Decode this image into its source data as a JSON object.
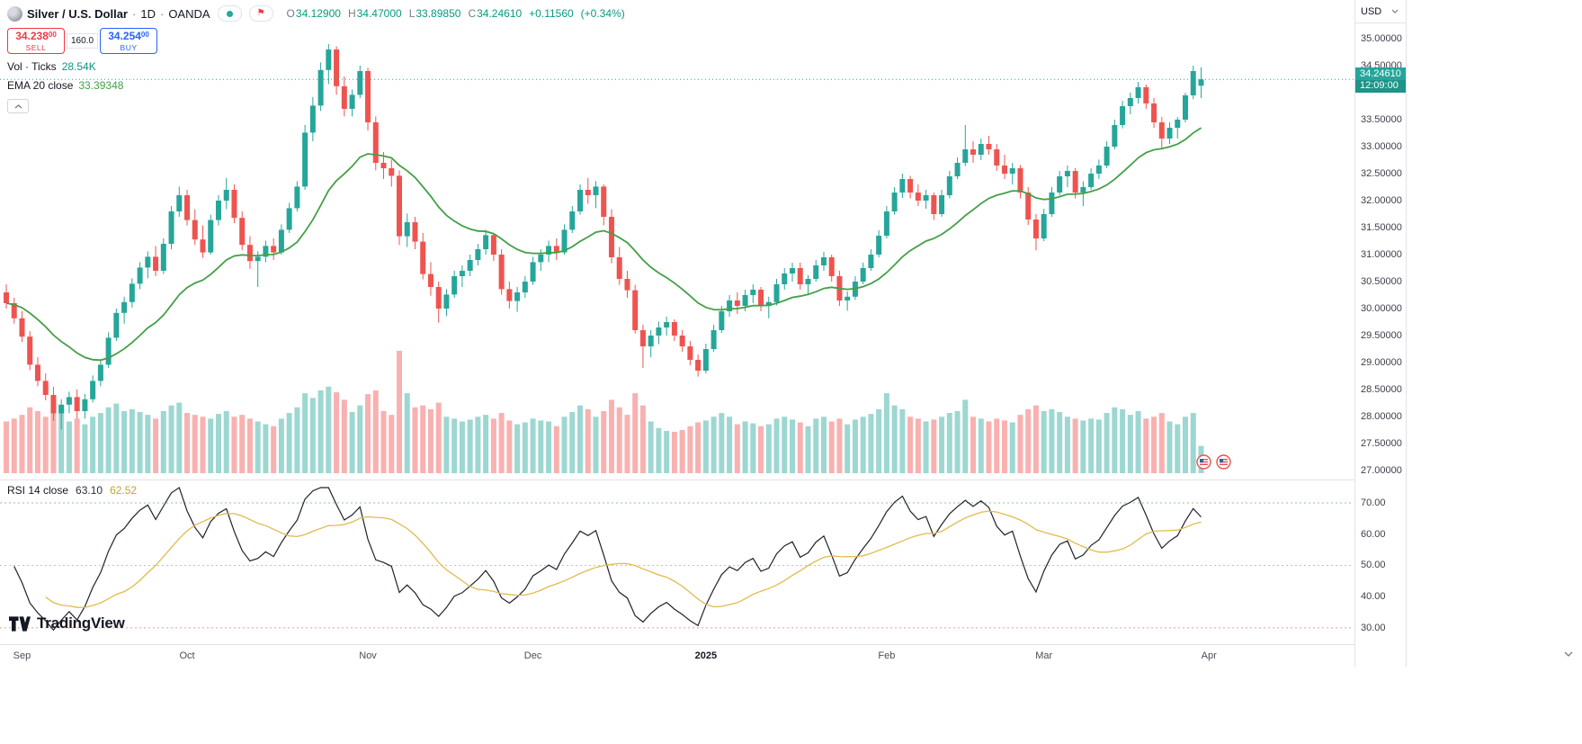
{
  "colors": {
    "up": "#26a69a",
    "down": "#ef5350",
    "vol_up": "rgba(38,166,154,0.45)",
    "vol_down": "rgba(239,83,80,0.45)",
    "ema": "#43a047",
    "rsi": "#1e222d",
    "rsi_ma": "#e0bb4d",
    "rsi_band_hi": "rgba(76,175,80,0.65)",
    "rsi_band_mid": "rgba(149,152,161,0.6)",
    "rsi_band_lo": "rgba(239,83,80,0.6)",
    "sell_red": "#f23645",
    "buy_blue": "#2962ff",
    "accent_teal": "#089981",
    "tag_bg": "#26a69a"
  },
  "header": {
    "symbol": "Silver / U.S. Dollar",
    "sep": "·",
    "timeframe": "1D",
    "exchange": "OANDA",
    "ohlc": {
      "o_label": "O",
      "o_value": "34.12900",
      "h_label": "H",
      "h_value": "34.47000",
      "l_label": "L",
      "l_value": "33.89850",
      "c_label": "C",
      "c_value": "34.24610",
      "change": "+0.11560",
      "change_pct": "(+0.34%)"
    },
    "trade": {
      "sell_price": "34.238",
      "sell_sup": "00",
      "sell_label": "SELL",
      "spread": "160.0",
      "buy_price": "34.254",
      "buy_sup": "00",
      "buy_label": "BUY"
    },
    "vol_label": "Vol · Ticks",
    "vol_value": "28.54K",
    "ema_label": "EMA 20 close",
    "ema_value": "33.39348"
  },
  "rsi_legend": {
    "label": "RSI 14 close",
    "value": "63.10",
    "ma_value": "62.52"
  },
  "price_scale": {
    "currency": "USD",
    "labels": [
      "35.00000",
      "34.50000",
      "33.50000",
      "33.00000",
      "32.50000",
      "32.00000",
      "31.50000",
      "31.00000",
      "30.50000",
      "30.00000",
      "29.50000",
      "29.00000",
      "28.50000",
      "28.00000",
      "27.50000",
      "27.00000"
    ],
    "tag": {
      "price": "34.24610",
      "countdown": "12:09:00"
    }
  },
  "rsi_scale": {
    "labels": [
      "70.00",
      "60.00",
      "50.00",
      "40.00",
      "30.00"
    ]
  },
  "footer_logo": "TradingView",
  "icons": {
    "market_status": "teal-dot-icon",
    "symbol_flag": "flag-icon",
    "currency_caret": "caret-down-icon",
    "legend_collapse": "chevron-up-icon",
    "panel_corner": "chevron-down-icon",
    "event_markers": "us-flag-circle-icon"
  },
  "chart_data": {
    "type": "candlestick",
    "title": "Silver / U.S. Dollar, 1D, OANDA",
    "current_price": 34.2461,
    "y_axis": {
      "min": 26.9,
      "max": 35.3,
      "tick_step": 0.5
    },
    "volume_axis_max_k": 130,
    "overlays": [
      {
        "name": "EMA 20",
        "period": 20,
        "last_value": 33.39348
      }
    ],
    "indicators": [
      {
        "name": "RSI",
        "period": 14,
        "last": 63.1,
        "ma_last": 62.52,
        "bands": [
          70,
          50,
          30
        ]
      }
    ],
    "x_axis": {
      "ticks": [
        {
          "label": "Sep",
          "i": 2
        },
        {
          "label": "Oct",
          "i": 23
        },
        {
          "label": "Nov",
          "i": 46
        },
        {
          "label": "Dec",
          "i": 67
        },
        {
          "label": "2025",
          "i": 89,
          "bold": true
        },
        {
          "label": "Feb",
          "i": 112
        },
        {
          "label": "Mar",
          "i": 132
        },
        {
          "label": "Apr",
          "i": 153
        }
      ]
    },
    "candles": [
      [
        30.3,
        30.45,
        30.0,
        30.1,
        55
      ],
      [
        30.1,
        30.2,
        29.72,
        29.82,
        58
      ],
      [
        29.82,
        29.95,
        29.38,
        29.48,
        62
      ],
      [
        29.48,
        29.58,
        28.86,
        28.96,
        70
      ],
      [
        28.96,
        29.1,
        28.56,
        28.66,
        66
      ],
      [
        28.66,
        28.8,
        28.3,
        28.4,
        60
      ],
      [
        28.4,
        28.55,
        27.92,
        28.06,
        72
      ],
      [
        28.06,
        28.32,
        27.76,
        28.22,
        68
      ],
      [
        28.22,
        28.46,
        28.06,
        28.36,
        55
      ],
      [
        28.36,
        28.5,
        27.96,
        28.1,
        58
      ],
      [
        28.1,
        28.42,
        27.96,
        28.32,
        52
      ],
      [
        28.32,
        28.76,
        28.26,
        28.66,
        60
      ],
      [
        28.66,
        29.06,
        28.56,
        28.96,
        64
      ],
      [
        28.96,
        29.56,
        28.9,
        29.46,
        70
      ],
      [
        29.46,
        30.0,
        29.4,
        29.92,
        74
      ],
      [
        29.92,
        30.22,
        29.72,
        30.12,
        66
      ],
      [
        30.12,
        30.56,
        30.02,
        30.46,
        68
      ],
      [
        30.46,
        30.86,
        30.36,
        30.76,
        65
      ],
      [
        30.76,
        31.06,
        30.56,
        30.96,
        62
      ],
      [
        30.96,
        31.16,
        30.6,
        30.7,
        58
      ],
      [
        30.7,
        31.3,
        30.64,
        31.2,
        66
      ],
      [
        31.2,
        31.9,
        31.1,
        31.8,
        72
      ],
      [
        31.8,
        32.26,
        31.7,
        32.1,
        75
      ],
      [
        32.1,
        32.2,
        31.54,
        31.64,
        64
      ],
      [
        31.64,
        31.84,
        31.18,
        31.28,
        62
      ],
      [
        31.28,
        31.54,
        30.94,
        31.04,
        60
      ],
      [
        31.04,
        31.74,
        31.0,
        31.64,
        58
      ],
      [
        31.64,
        32.1,
        31.54,
        32.0,
        63
      ],
      [
        32.0,
        32.42,
        31.84,
        32.2,
        66
      ],
      [
        32.2,
        32.3,
        31.58,
        31.68,
        60
      ],
      [
        31.68,
        31.8,
        31.08,
        31.18,
        62
      ],
      [
        31.18,
        31.34,
        30.74,
        30.88,
        58
      ],
      [
        30.88,
        31.06,
        30.4,
        30.96,
        55
      ],
      [
        30.96,
        31.26,
        30.86,
        31.16,
        52
      ],
      [
        31.16,
        31.3,
        30.9,
        31.04,
        50
      ],
      [
        31.04,
        31.56,
        31.0,
        31.46,
        58
      ],
      [
        31.46,
        31.96,
        31.4,
        31.86,
        64
      ],
      [
        31.86,
        32.36,
        31.8,
        32.26,
        70
      ],
      [
        32.26,
        33.4,
        32.2,
        33.26,
        85
      ],
      [
        33.26,
        33.92,
        33.1,
        33.76,
        80
      ],
      [
        33.76,
        34.56,
        33.66,
        34.42,
        88
      ],
      [
        34.42,
        34.9,
        34.16,
        34.8,
        92
      ],
      [
        34.8,
        34.86,
        33.96,
        34.12,
        86
      ],
      [
        34.12,
        34.3,
        33.56,
        33.7,
        78
      ],
      [
        33.7,
        34.06,
        33.56,
        33.96,
        65
      ],
      [
        33.96,
        34.5,
        33.9,
        34.4,
        72
      ],
      [
        34.4,
        34.46,
        33.3,
        33.45,
        84
      ],
      [
        33.45,
        33.56,
        32.56,
        32.7,
        88
      ],
      [
        32.7,
        32.9,
        32.4,
        32.6,
        66
      ],
      [
        32.6,
        32.76,
        32.26,
        32.46,
        62
      ],
      [
        32.46,
        32.56,
        31.18,
        31.34,
        130
      ],
      [
        31.34,
        31.76,
        31.14,
        31.6,
        85
      ],
      [
        31.6,
        31.7,
        31.1,
        31.24,
        70
      ],
      [
        31.24,
        31.4,
        30.54,
        30.64,
        72
      ],
      [
        30.64,
        30.86,
        30.24,
        30.4,
        68
      ],
      [
        30.4,
        30.5,
        29.74,
        30.0,
        75
      ],
      [
        30.0,
        30.36,
        29.86,
        30.26,
        60
      ],
      [
        30.26,
        30.7,
        30.2,
        30.6,
        58
      ],
      [
        30.6,
        30.8,
        30.4,
        30.7,
        55
      ],
      [
        30.7,
        31.0,
        30.6,
        30.9,
        57
      ],
      [
        30.9,
        31.2,
        30.8,
        31.1,
        60
      ],
      [
        31.1,
        31.46,
        31.0,
        31.36,
        62
      ],
      [
        31.36,
        31.4,
        30.88,
        31.0,
        58
      ],
      [
        31.0,
        31.1,
        30.26,
        30.36,
        64
      ],
      [
        30.36,
        30.5,
        30.0,
        30.14,
        56
      ],
      [
        30.14,
        30.4,
        29.94,
        30.3,
        52
      ],
      [
        30.3,
        30.6,
        30.2,
        30.5,
        54
      ],
      [
        30.5,
        30.96,
        30.44,
        30.86,
        58
      ],
      [
        30.86,
        31.1,
        30.7,
        31.0,
        56
      ],
      [
        31.0,
        31.26,
        30.86,
        31.16,
        55
      ],
      [
        31.16,
        31.3,
        30.9,
        31.04,
        50
      ],
      [
        31.04,
        31.56,
        31.0,
        31.46,
        60
      ],
      [
        31.46,
        31.9,
        31.4,
        31.8,
        65
      ],
      [
        31.8,
        32.3,
        31.74,
        32.2,
        72
      ],
      [
        32.2,
        32.42,
        31.94,
        32.1,
        68
      ],
      [
        32.1,
        32.36,
        31.86,
        32.26,
        60
      ],
      [
        32.26,
        32.3,
        31.54,
        31.7,
        66
      ],
      [
        31.7,
        31.84,
        30.84,
        30.95,
        78
      ],
      [
        30.95,
        31.14,
        30.44,
        30.55,
        70
      ],
      [
        30.55,
        30.7,
        30.2,
        30.34,
        62
      ],
      [
        30.34,
        30.44,
        29.54,
        29.6,
        85
      ],
      [
        29.6,
        29.7,
        28.9,
        29.3,
        72
      ],
      [
        29.3,
        29.6,
        29.1,
        29.5,
        55
      ],
      [
        29.5,
        29.76,
        29.34,
        29.65,
        48
      ],
      [
        29.65,
        29.85,
        29.5,
        29.75,
        45
      ],
      [
        29.75,
        29.8,
        29.4,
        29.5,
        44
      ],
      [
        29.5,
        29.6,
        29.2,
        29.3,
        46
      ],
      [
        29.3,
        29.4,
        28.95,
        29.05,
        50
      ],
      [
        29.05,
        29.15,
        28.74,
        28.85,
        54
      ],
      [
        28.85,
        29.35,
        28.8,
        29.25,
        56
      ],
      [
        29.25,
        29.7,
        29.2,
        29.6,
        60
      ],
      [
        29.6,
        30.05,
        29.55,
        29.95,
        64
      ],
      [
        29.95,
        30.25,
        29.85,
        30.15,
        60
      ],
      [
        30.15,
        30.3,
        29.9,
        30.05,
        52
      ],
      [
        30.05,
        30.35,
        29.95,
        30.25,
        55
      ],
      [
        30.25,
        30.45,
        30.1,
        30.35,
        53
      ],
      [
        30.35,
        30.4,
        29.95,
        30.05,
        50
      ],
      [
        30.05,
        30.22,
        29.82,
        30.12,
        52
      ],
      [
        30.12,
        30.55,
        30.06,
        30.45,
        58
      ],
      [
        30.45,
        30.75,
        30.35,
        30.65,
        60
      ],
      [
        30.65,
        30.85,
        30.5,
        30.75,
        57
      ],
      [
        30.75,
        30.85,
        30.35,
        30.45,
        54
      ],
      [
        30.45,
        30.62,
        30.25,
        30.55,
        50
      ],
      [
        30.55,
        30.9,
        30.5,
        30.8,
        58
      ],
      [
        30.8,
        31.05,
        30.7,
        30.95,
        60
      ],
      [
        30.95,
        31.0,
        30.5,
        30.6,
        55
      ],
      [
        30.6,
        30.7,
        30.05,
        30.15,
        58
      ],
      [
        30.15,
        30.32,
        29.96,
        30.22,
        52
      ],
      [
        30.22,
        30.6,
        30.16,
        30.5,
        57
      ],
      [
        30.5,
        30.85,
        30.45,
        30.75,
        60
      ],
      [
        30.75,
        31.1,
        30.7,
        31.0,
        63
      ],
      [
        31.0,
        31.45,
        30.95,
        31.35,
        68
      ],
      [
        31.35,
        31.9,
        31.3,
        31.8,
        85
      ],
      [
        31.8,
        32.25,
        31.74,
        32.15,
        72
      ],
      [
        32.15,
        32.5,
        32.05,
        32.4,
        68
      ],
      [
        32.4,
        32.46,
        32.04,
        32.15,
        60
      ],
      [
        32.15,
        32.3,
        31.9,
        32.0,
        58
      ],
      [
        32.0,
        32.2,
        31.85,
        32.1,
        55
      ],
      [
        32.1,
        32.15,
        31.64,
        31.75,
        57
      ],
      [
        31.75,
        32.2,
        31.7,
        32.1,
        60
      ],
      [
        32.1,
        32.55,
        32.04,
        32.45,
        64
      ],
      [
        32.45,
        32.8,
        32.4,
        32.7,
        66
      ],
      [
        32.7,
        33.4,
        32.64,
        32.95,
        78
      ],
      [
        32.95,
        33.1,
        32.7,
        32.85,
        60
      ],
      [
        32.85,
        33.15,
        32.75,
        33.05,
        58
      ],
      [
        33.05,
        33.2,
        32.85,
        32.95,
        55
      ],
      [
        32.95,
        33.05,
        32.55,
        32.65,
        58
      ],
      [
        32.65,
        32.85,
        32.4,
        32.5,
        56
      ],
      [
        32.5,
        32.7,
        32.3,
        32.6,
        54
      ],
      [
        32.6,
        32.66,
        32.04,
        32.15,
        62
      ],
      [
        32.15,
        32.25,
        31.55,
        31.65,
        68
      ],
      [
        31.65,
        31.75,
        31.08,
        31.3,
        72
      ],
      [
        31.3,
        31.85,
        31.25,
        31.75,
        66
      ],
      [
        31.75,
        32.25,
        31.7,
        32.15,
        68
      ],
      [
        32.15,
        32.55,
        32.1,
        32.45,
        65
      ],
      [
        32.45,
        32.65,
        32.25,
        32.55,
        60
      ],
      [
        32.55,
        32.6,
        32.04,
        32.15,
        58
      ],
      [
        32.15,
        32.36,
        31.9,
        32.25,
        56
      ],
      [
        32.25,
        32.6,
        32.2,
        32.5,
        58
      ],
      [
        32.5,
        32.76,
        32.4,
        32.65,
        57
      ],
      [
        32.65,
        33.1,
        32.6,
        33.0,
        64
      ],
      [
        33.0,
        33.5,
        32.95,
        33.4,
        70
      ],
      [
        33.4,
        33.85,
        33.34,
        33.75,
        68
      ],
      [
        33.75,
        34.0,
        33.6,
        33.9,
        62
      ],
      [
        33.9,
        34.2,
        33.8,
        34.1,
        66
      ],
      [
        34.1,
        34.15,
        33.7,
        33.8,
        58
      ],
      [
        33.8,
        33.9,
        33.35,
        33.45,
        60
      ],
      [
        33.45,
        33.55,
        32.95,
        33.15,
        64
      ],
      [
        33.15,
        33.45,
        33.05,
        33.35,
        55
      ],
      [
        33.35,
        33.55,
        33.15,
        33.5,
        52
      ],
      [
        33.5,
        34.0,
        33.45,
        33.95,
        60
      ],
      [
        33.95,
        34.5,
        33.88,
        34.4,
        64
      ],
      [
        34.129,
        34.47,
        33.8985,
        34.2461,
        29
      ]
    ]
  }
}
